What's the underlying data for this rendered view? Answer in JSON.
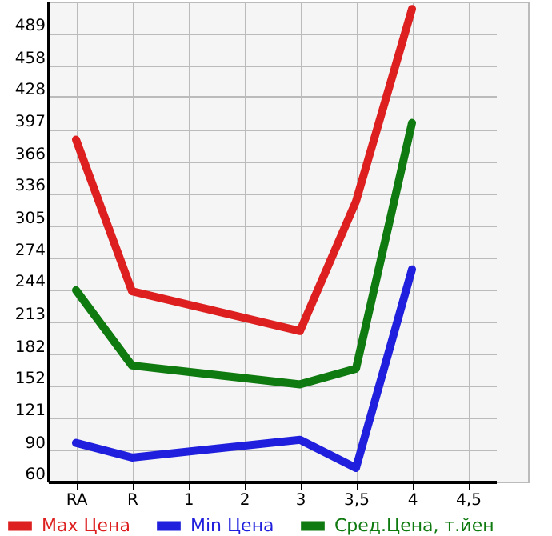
{
  "chart_data": {
    "type": "line",
    "categories": [
      "RA",
      "R",
      "1",
      "2",
      "3",
      "3,5",
      "4",
      "4,5"
    ],
    "series": [
      {
        "name": "Max Цена",
        "color": "#dd1f1f",
        "values": [
          387,
          242,
          null,
          null,
          204,
          328,
          512,
          null
        ]
      },
      {
        "name": "Min Цена",
        "color": "#1f1fdd",
        "values": [
          97,
          83,
          null,
          null,
          100,
          73,
          263,
          null
        ]
      },
      {
        "name": "Сред.Цена, т.йен",
        "color": "#0f7a0f",
        "values": [
          243,
          171,
          null,
          null,
          153,
          168,
          403,
          null
        ]
      }
    ],
    "ylim": [
      60,
      519
    ],
    "yticks": [
      60,
      90,
      121,
      152,
      182,
      213,
      244,
      274,
      305,
      336,
      366,
      397,
      428,
      458,
      489
    ],
    "grid": true,
    "legend": "bottom",
    "marker": "none",
    "line_style": "solid"
  }
}
